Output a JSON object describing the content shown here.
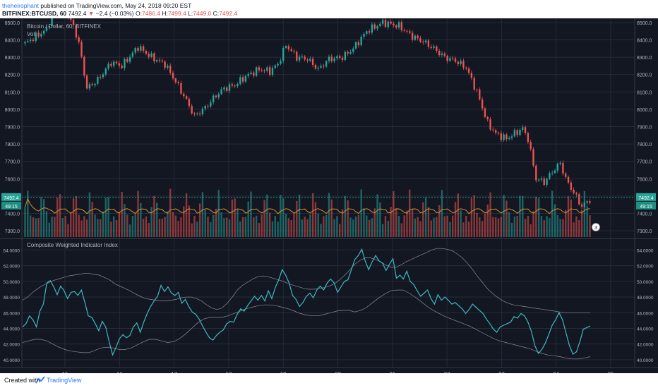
{
  "header": {
    "author": "theheirophant",
    "published": "published on TradingView.com, May 24, 2018 09:20 EST",
    "symbol": "BITFINEX:BTCUSD, 60",
    "last": "7492.4",
    "arrow": "▼",
    "change": "−2.4 (−0.03%)",
    "o_label": "O:",
    "o": "7486.4",
    "h_label": "H:",
    "h": "7499.4",
    "l_label": "L:",
    "l": "7449.0",
    "c_label": "C:",
    "c": "7492.4"
  },
  "footer": {
    "created": "Created with",
    "brand": "TradingView"
  },
  "colors": {
    "background": "#131722",
    "grid": "#262b3a",
    "up": "#26a69a",
    "down": "#ef5350",
    "indicator": "#3fb8c0",
    "band": "#8a8d96",
    "volume_ma": "#d9902e",
    "axis_text": "#b2b5be"
  },
  "chart_data": [
    {
      "type": "candlestick",
      "title": "Bitcoin / Dollar, 60, BITFINEX",
      "volume_label": "Vol",
      "ylim": [
        7260,
        8520
      ],
      "yticks": [
        7300,
        7400,
        7500,
        7600,
        7700,
        7800,
        7900,
        8000,
        8100,
        8200,
        8300,
        8400,
        8500
      ],
      "price_line": 7492.4,
      "price_label": "7492.4",
      "countdown_label": "49:15",
      "events_badge": "3",
      "x_tick_labels": [
        "15",
        "16",
        "17",
        "18",
        "19",
        "20",
        "21",
        "22",
        "23",
        "24",
        "25"
      ],
      "path_anchors": [
        [
          0,
          8380
        ],
        [
          4,
          8420
        ],
        [
          8,
          8460
        ],
        [
          10,
          8540
        ],
        [
          15,
          8560
        ],
        [
          18,
          8480
        ],
        [
          20,
          8380
        ],
        [
          23,
          8120
        ],
        [
          27,
          8170
        ],
        [
          32,
          8270
        ],
        [
          36,
          8250
        ],
        [
          42,
          8360
        ],
        [
          47,
          8300
        ],
        [
          52,
          8260
        ],
        [
          56,
          8160
        ],
        [
          60,
          8050
        ],
        [
          63,
          7960
        ],
        [
          67,
          8010
        ],
        [
          71,
          8080
        ],
        [
          74,
          8120
        ],
        [
          78,
          8140
        ],
        [
          82,
          8190
        ],
        [
          87,
          8230
        ],
        [
          91,
          8220
        ],
        [
          94,
          8260
        ],
        [
          97,
          8370
        ],
        [
          101,
          8300
        ],
        [
          105,
          8290
        ],
        [
          109,
          8230
        ],
        [
          113,
          8290
        ],
        [
          118,
          8300
        ],
        [
          122,
          8350
        ],
        [
          127,
          8450
        ],
        [
          133,
          8500
        ],
        [
          139,
          8480
        ],
        [
          144,
          8420
        ],
        [
          148,
          8390
        ],
        [
          152,
          8350
        ],
        [
          156,
          8300
        ],
        [
          160,
          8280
        ],
        [
          164,
          8240
        ],
        [
          168,
          8100
        ],
        [
          172,
          7920
        ],
        [
          175,
          7860
        ],
        [
          179,
          7830
        ],
        [
          182,
          7860
        ],
        [
          185,
          7890
        ],
        [
          187,
          7830
        ],
        [
          190,
          7600
        ],
        [
          193,
          7580
        ],
        [
          196,
          7640
        ],
        [
          199,
          7690
        ],
        [
          201,
          7600
        ],
        [
          204,
          7520
        ],
        [
          207,
          7440
        ],
        [
          210,
          7480
        ]
      ]
    },
    {
      "type": "line",
      "title": "Composite Weighted Indicator Index",
      "ylim": [
        39.0,
        55.3
      ],
      "yticks": [
        "40.0000",
        "42.0000",
        "44.0000",
        "46.0000",
        "48.0000",
        "50.0000",
        "52.0000",
        "54.0000"
      ],
      "series": [
        {
          "values": [
            44.2,
            44.6,
            45.6,
            45.1,
            44.2,
            46.2,
            47.1,
            49.8,
            50.1,
            49.3,
            48.3,
            49.4,
            48.8,
            47.8,
            48.6,
            48.7,
            48.2,
            48.9,
            47.3,
            45.6,
            45.4,
            44.6,
            43.7,
            44.9,
            44.2,
            42.3,
            40.6,
            41.6,
            42.7,
            43.2,
            42.8,
            43.1,
            44.2,
            44.7,
            43.5,
            44.8,
            45.9,
            46.8,
            47.5,
            48.1,
            49.5,
            48.7,
            49.3,
            48.5,
            48.2,
            48.6,
            47.2,
            47.7,
            46.8,
            46.1,
            45.8,
            45.2,
            44.3,
            43.5,
            42.8,
            42.5,
            43.1,
            43.5,
            43.8,
            44.6,
            44.9,
            44.8,
            45.8,
            46.5,
            46.2,
            46.9,
            47.5,
            48.1,
            47.6,
            48.2,
            47.5,
            48.8,
            47.8,
            49.2,
            50.2,
            51.5,
            50.8,
            49.8,
            48.2,
            47.7,
            46.8,
            47.3,
            48.1,
            48.5,
            47.9,
            48.9,
            49.4,
            48.9,
            49.8,
            50.3,
            49.8,
            48.6,
            49.3,
            50.0,
            50.2,
            51.5,
            52.8,
            53.3,
            54.1,
            52.6,
            51.5,
            52.5,
            53.3,
            52.6,
            52.3,
            51.4,
            52.2,
            52.9,
            50.4,
            50.8,
            50.3,
            51.3,
            50.0,
            49.6,
            48.8,
            48.1,
            48.5,
            48.9,
            47.8,
            47.1,
            48.3,
            47.6,
            48.0,
            47.6,
            47.1,
            47.3,
            46.9,
            46.5,
            45.9,
            46.4,
            47.1,
            46.7,
            46.3,
            45.9,
            45.2,
            44.6,
            43.9,
            43.5,
            44.2,
            44.4,
            44.6,
            44.8,
            45.5,
            45.3,
            45.9,
            45.6,
            44.8,
            43.6,
            41.8,
            40.8,
            41.3,
            42.1,
            43.2,
            44.4,
            45.1,
            46.0,
            45.1,
            43.4,
            41.8,
            40.7,
            41.0,
            42.3,
            43.9,
            44.1,
            44.3
          ]
        },
        {
          "values": [
            47.6,
            48.0,
            48.6,
            49.1,
            49.5,
            49.8,
            50.1,
            50.3,
            50.5,
            50.7,
            50.8,
            50.9,
            51.0,
            51.0,
            50.9,
            50.8,
            50.5,
            50.2,
            49.7,
            49.4,
            49.1,
            48.8,
            48.4,
            48.1,
            47.8,
            47.7,
            47.6,
            47.5,
            47.5,
            47.6,
            47.7,
            47.9,
            48.0,
            48.0,
            47.8,
            47.5,
            47.0,
            46.6,
            46.4,
            46.6,
            47.2,
            48.0,
            48.9,
            49.5,
            49.9,
            50.3,
            50.6,
            50.7,
            50.6,
            50.4,
            50.2,
            50.0,
            49.7,
            49.5,
            49.3,
            49.1,
            49.0,
            49.0,
            49.1,
            49.2,
            49.4,
            49.7,
            50.2,
            50.8,
            51.5,
            52.2,
            52.7,
            53.0,
            53.0,
            52.8,
            52.5,
            52.1,
            51.8,
            51.8,
            52.1,
            52.5,
            52.8,
            53.1,
            53.4,
            53.7,
            54.0,
            54.2,
            54.2,
            54.1,
            53.9,
            53.5,
            53.0,
            52.3,
            51.5,
            50.6,
            49.8,
            49.0,
            48.4,
            47.9,
            47.5,
            47.2,
            47.0,
            46.9,
            46.8,
            46.7,
            46.6,
            46.5,
            46.4,
            46.3,
            46.2,
            46.1,
            46.0,
            46.0,
            46.0,
            46.0,
            46.0,
            46.0
          ]
        },
        {
          "values": [
            42.2,
            42.4,
            42.6,
            42.6,
            42.4,
            42.0,
            41.6,
            41.3,
            41.1,
            41.0,
            40.9,
            40.9,
            41.2,
            41.5,
            41.6,
            41.5,
            41.3,
            41.3,
            41.5,
            41.9,
            42.3,
            42.6,
            42.6,
            42.4,
            42.2,
            42.3,
            42.7,
            43.3,
            44.0,
            44.7,
            45.2,
            45.4,
            45.4,
            45.4,
            45.6,
            45.9,
            46.2,
            46.5,
            46.7,
            46.9,
            47.0,
            47.0,
            46.9,
            46.7,
            46.5,
            46.2,
            45.9,
            45.7,
            45.6,
            45.6,
            45.8,
            46.0,
            46.2,
            46.3,
            46.3,
            46.1,
            46.3,
            46.7,
            47.3,
            47.9,
            48.4,
            48.8,
            48.9,
            48.9,
            48.5,
            48.0,
            47.4,
            46.8,
            46.3,
            45.9,
            45.5,
            45.2,
            44.9,
            44.6,
            44.3,
            43.9,
            43.5,
            43.1,
            42.7,
            42.4,
            42.2,
            42.0,
            41.8,
            41.6,
            41.4,
            41.1,
            40.8,
            40.6,
            40.5,
            40.4,
            40.2,
            40.1,
            40.1,
            40.2,
            40.4
          ]
        }
      ],
      "x_tick_labels": [
        "15",
        "16",
        "17",
        "18",
        "19",
        "20",
        "21",
        "22",
        "23",
        "24",
        "25"
      ]
    }
  ]
}
